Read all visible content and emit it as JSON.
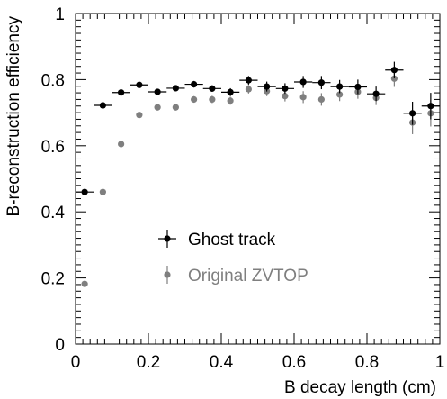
{
  "chart_data": {
    "type": "scatter",
    "title": "",
    "xlabel": "B decay length (cm)",
    "ylabel": "B-reconstruction efficiency",
    "xlim": [
      0,
      1
    ],
    "ylim": [
      0,
      1
    ],
    "x_ticks": [
      "0",
      "0.2",
      "0.4",
      "0.6",
      "0.8",
      "1"
    ],
    "y_ticks": [
      "0",
      "0.2",
      "0.4",
      "0.6",
      "0.8",
      "1"
    ],
    "grid": false,
    "legend_position": "center-left",
    "series": [
      {
        "name": "Ghost track",
        "color": "#000000",
        "points": [
          {
            "x": 0.025,
            "y": 0.46,
            "yerr": 0.005
          },
          {
            "x": 0.075,
            "y": 0.722,
            "yerr": 0.006
          },
          {
            "x": 0.125,
            "y": 0.761,
            "yerr": 0.006
          },
          {
            "x": 0.175,
            "y": 0.784,
            "yerr": 0.007
          },
          {
            "x": 0.225,
            "y": 0.763,
            "yerr": 0.008
          },
          {
            "x": 0.275,
            "y": 0.774,
            "yerr": 0.009
          },
          {
            "x": 0.325,
            "y": 0.786,
            "yerr": 0.01
          },
          {
            "x": 0.375,
            "y": 0.773,
            "yerr": 0.01
          },
          {
            "x": 0.425,
            "y": 0.762,
            "yerr": 0.012
          },
          {
            "x": 0.475,
            "y": 0.798,
            "yerr": 0.013
          },
          {
            "x": 0.525,
            "y": 0.779,
            "yerr": 0.015
          },
          {
            "x": 0.575,
            "y": 0.773,
            "yerr": 0.016
          },
          {
            "x": 0.625,
            "y": 0.793,
            "yerr": 0.018
          },
          {
            "x": 0.675,
            "y": 0.791,
            "yerr": 0.02
          },
          {
            "x": 0.725,
            "y": 0.779,
            "yerr": 0.02
          },
          {
            "x": 0.775,
            "y": 0.778,
            "yerr": 0.022
          },
          {
            "x": 0.825,
            "y": 0.757,
            "yerr": 0.022
          },
          {
            "x": 0.875,
            "y": 0.829,
            "yerr": 0.025
          },
          {
            "x": 0.925,
            "y": 0.698,
            "yerr": 0.035
          },
          {
            "x": 0.975,
            "y": 0.72,
            "yerr": 0.04
          }
        ]
      },
      {
        "name": "Original ZVTOP",
        "color": "#7f7f7f",
        "points": [
          {
            "x": 0.025,
            "y": 0.182,
            "yerr": 0.004
          },
          {
            "x": 0.075,
            "y": 0.46,
            "yerr": 0.006
          },
          {
            "x": 0.125,
            "y": 0.605,
            "yerr": 0.007
          },
          {
            "x": 0.175,
            "y": 0.693,
            "yerr": 0.008
          },
          {
            "x": 0.225,
            "y": 0.716,
            "yerr": 0.009
          },
          {
            "x": 0.275,
            "y": 0.716,
            "yerr": 0.009
          },
          {
            "x": 0.325,
            "y": 0.74,
            "yerr": 0.01
          },
          {
            "x": 0.375,
            "y": 0.74,
            "yerr": 0.011
          },
          {
            "x": 0.425,
            "y": 0.736,
            "yerr": 0.012
          },
          {
            "x": 0.475,
            "y": 0.771,
            "yerr": 0.013
          },
          {
            "x": 0.525,
            "y": 0.765,
            "yerr": 0.015
          },
          {
            "x": 0.575,
            "y": 0.75,
            "yerr": 0.016
          },
          {
            "x": 0.625,
            "y": 0.747,
            "yerr": 0.018
          },
          {
            "x": 0.675,
            "y": 0.74,
            "yerr": 0.019
          },
          {
            "x": 0.725,
            "y": 0.755,
            "yerr": 0.02
          },
          {
            "x": 0.775,
            "y": 0.763,
            "yerr": 0.021
          },
          {
            "x": 0.825,
            "y": 0.745,
            "yerr": 0.022
          },
          {
            "x": 0.875,
            "y": 0.803,
            "yerr": 0.025
          },
          {
            "x": 0.925,
            "y": 0.67,
            "yerr": 0.035
          },
          {
            "x": 0.975,
            "y": 0.698,
            "yerr": 0.04
          }
        ]
      }
    ]
  }
}
